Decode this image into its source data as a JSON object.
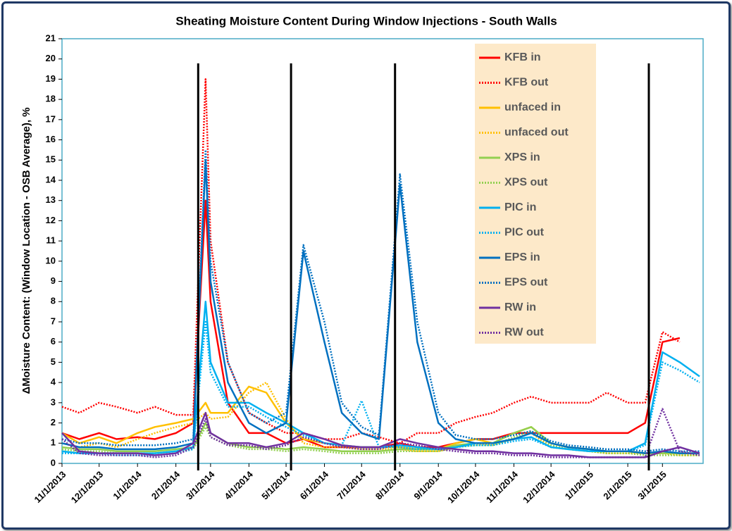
{
  "chart_data": {
    "type": "line",
    "title": "Sheating Moisture Content During Window Injections - South Walls",
    "y_label": "ΔMoisture Content: (Window Location - OSB Average), %",
    "x": [
      "11/1/2013",
      "11/15/2013",
      "12/1/2013",
      "12/15/2013",
      "1/1/2014",
      "1/15/2014",
      "2/1/2014",
      "2/15/2014",
      "2/25/2014",
      "3/1/2014",
      "3/15/2014",
      "4/1/2014",
      "4/15/2014",
      "5/1/2014",
      "5/15/2014",
      "6/1/2014",
      "6/15/2014",
      "7/1/2014",
      "7/15/2014",
      "8/1/2014",
      "8/15/2014",
      "9/1/2014",
      "9/15/2014",
      "10/1/2014",
      "10/15/2014",
      "11/1/2014",
      "11/15/2014",
      "12/1/2014",
      "12/15/2014",
      "1/1/2015",
      "1/15/2015",
      "2/1/2015",
      "2/15/2015",
      "3/1/2015",
      "3/15/2015",
      "3/31/2015"
    ],
    "xlim": [
      "11/1/2013",
      "3/31/2015"
    ],
    "xticks": [
      "11/1/2013",
      "12/1/2013",
      "1/1/2014",
      "2/1/2014",
      "3/1/2014",
      "4/1/2014",
      "5/1/2014",
      "6/1/2014",
      "7/1/2014",
      "8/1/2014",
      "9/1/2014",
      "10/1/2014",
      "11/1/2014",
      "12/1/2014",
      "1/1/2015",
      "2/1/2015",
      "3/1/2015"
    ],
    "ylim": [
      0,
      21
    ],
    "yticks": [
      0,
      1,
      2,
      3,
      4,
      5,
      6,
      7,
      8,
      9,
      10,
      11,
      12,
      13,
      14,
      15,
      16,
      17,
      18,
      19,
      20,
      21
    ],
    "grid": false,
    "legend": "upper right",
    "injection_dates": [
      "2/19/2014",
      "5/5/2014",
      "7/28/2014",
      "2/18/2015"
    ],
    "series": [
      {
        "name": "KFB in",
        "color": "#ff0000",
        "style": "solid",
        "values": [
          1.5,
          1.2,
          1.5,
          1.2,
          1.3,
          1.2,
          1.5,
          2,
          13,
          8,
          3,
          1.5,
          1.5,
          1,
          1.2,
          0.8,
          0.8,
          0.8,
          0.8,
          1,
          0.8,
          0.8,
          1,
          1.2,
          1.2,
          1.5,
          1.5,
          1.5,
          1.5,
          1.5,
          1.5,
          1.5,
          2,
          6,
          6.2,
          null
        ]
      },
      {
        "name": "KFB out",
        "color": "#ff0000",
        "style": "dotted",
        "values": [
          2.8,
          2.5,
          3,
          2.8,
          2.5,
          2.8,
          2.4,
          2.4,
          19,
          11,
          5,
          2.5,
          2,
          1.5,
          1.5,
          1.2,
          1.2,
          1.5,
          1.3,
          1,
          1.5,
          1.5,
          2,
          2.3,
          2.5,
          3,
          3.3,
          3,
          3,
          3,
          3.5,
          3,
          3,
          6.5,
          6,
          null
        ]
      },
      {
        "name": "unfaced in",
        "color": "#ffc000",
        "style": "solid",
        "values": [
          1.5,
          1,
          1.3,
          1,
          1.5,
          1.8,
          2,
          2.2,
          3,
          2.5,
          2.5,
          3.8,
          3.5,
          2,
          1.2,
          1,
          0.9,
          0.8,
          0.8,
          0.8,
          0.7,
          0.7,
          1,
          1.2,
          1,
          1.5,
          1.8,
          1,
          0.8,
          0.7,
          0.6,
          0.6,
          0.5,
          0.5,
          0.5,
          0.5
        ]
      },
      {
        "name": "unfaced out",
        "color": "#ffc000",
        "style": "dotted",
        "values": [
          1,
          0.8,
          1,
          0.8,
          1.2,
          1.5,
          1.8,
          2,
          2.5,
          2.2,
          2.3,
          3.5,
          4,
          2.2,
          1,
          0.8,
          0.8,
          0.7,
          0.7,
          0.7,
          0.6,
          0.6,
          0.8,
          1,
          0.9,
          1.2,
          1.5,
          0.8,
          0.7,
          0.6,
          0.5,
          0.5,
          0.5,
          0.5,
          0.4,
          0.4
        ]
      },
      {
        "name": "XPS in",
        "color": "#92d050",
        "style": "solid",
        "values": [
          0.8,
          0.7,
          0.7,
          0.6,
          0.6,
          0.6,
          0.7,
          0.8,
          2,
          1.5,
          1,
          0.8,
          0.8,
          0.7,
          0.8,
          0.7,
          0.6,
          0.6,
          0.6,
          0.7,
          0.7,
          0.7,
          0.9,
          1,
          1,
          1.5,
          1.8,
          1,
          0.8,
          0.7,
          0.6,
          0.6,
          0.5,
          0.5,
          0.5,
          0.5
        ]
      },
      {
        "name": "XPS out",
        "color": "#92d050",
        "style": "dotted",
        "values": [
          0.7,
          0.6,
          0.6,
          0.5,
          0.5,
          0.5,
          0.6,
          0.7,
          1.8,
          1.3,
          0.9,
          0.7,
          0.7,
          0.6,
          0.7,
          0.6,
          0.5,
          0.5,
          0.5,
          0.6,
          0.6,
          0.6,
          0.8,
          0.9,
          0.9,
          1.3,
          1.6,
          0.9,
          0.7,
          0.6,
          0.5,
          0.5,
          0.4,
          0.4,
          0.4,
          0.4
        ]
      },
      {
        "name": "PIC in",
        "color": "#00b0f0",
        "style": "solid",
        "values": [
          0.6,
          0.5,
          0.5,
          0.5,
          0.5,
          0.5,
          0.6,
          0.8,
          8,
          5,
          3,
          3,
          2.5,
          2,
          1.5,
          1,
          0.9,
          0.8,
          0.8,
          0.9,
          0.8,
          0.7,
          0.8,
          1,
          1,
          1.2,
          1.3,
          0.8,
          0.7,
          0.6,
          0.6,
          0.6,
          1,
          5.5,
          5,
          4.3
        ]
      },
      {
        "name": "PIC out",
        "color": "#00b0f0",
        "style": "dotted",
        "values": [
          0.5,
          0.5,
          0.5,
          0.4,
          0.4,
          0.4,
          0.5,
          0.7,
          7,
          4.5,
          2.8,
          2.8,
          2.3,
          1.8,
          1.4,
          1,
          0.9,
          3.1,
          0.8,
          0.8,
          0.7,
          0.7,
          0.8,
          0.9,
          0.9,
          1.1,
          1.2,
          0.8,
          0.7,
          0.6,
          0.6,
          0.6,
          0.9,
          5,
          4.6,
          4
        ]
      },
      {
        "name": "EPS in",
        "color": "#0070c0",
        "style": "solid",
        "values": [
          1,
          0.8,
          0.8,
          0.7,
          0.7,
          0.7,
          0.8,
          1,
          15,
          9,
          4,
          2,
          1.5,
          2,
          10.5,
          6,
          2.5,
          1.5,
          1.2,
          13.8,
          6,
          2,
          1.2,
          1,
          1,
          1.2,
          1.5,
          1,
          0.8,
          0.7,
          0.6,
          0.6,
          0.5,
          0.6,
          0.5,
          0.5
        ]
      },
      {
        "name": "EPS out",
        "color": "#0070c0",
        "style": "dotted",
        "values": [
          1.2,
          1,
          1,
          0.9,
          0.9,
          0.9,
          1,
          1.2,
          15.5,
          10,
          5,
          2.5,
          2,
          2.5,
          10.8,
          7,
          3,
          1.8,
          1.4,
          14.3,
          7,
          2.5,
          1.4,
          1.2,
          1.2,
          1.4,
          1.6,
          1.1,
          0.9,
          0.8,
          0.7,
          0.7,
          0.6,
          0.7,
          0.6,
          0.6
        ]
      },
      {
        "name": "RW in",
        "color": "#7030a0",
        "style": "solid",
        "values": [
          1.5,
          0.6,
          0.5,
          0.5,
          0.5,
          0.4,
          0.5,
          1,
          2.5,
          1.5,
          1,
          1,
          0.8,
          1,
          1.5,
          1.2,
          0.9,
          0.8,
          0.8,
          1.2,
          1,
          0.8,
          0.7,
          0.6,
          0.6,
          0.5,
          0.5,
          0.4,
          0.4,
          0.3,
          0.3,
          0.3,
          0.3,
          0.6,
          0.8,
          0.5
        ]
      },
      {
        "name": "RW out",
        "color": "#7030a0",
        "style": "dotted",
        "values": [
          1.2,
          0.5,
          0.4,
          0.4,
          0.4,
          0.3,
          0.4,
          0.8,
          2.2,
          1.3,
          0.9,
          0.9,
          0.7,
          0.9,
          1.3,
          1,
          0.8,
          0.7,
          0.7,
          1,
          0.9,
          0.7,
          0.6,
          0.5,
          0.5,
          0.4,
          0.4,
          0.3,
          0.3,
          0.3,
          0.3,
          0.3,
          0.3,
          2.7,
          0.6,
          0.4
        ]
      }
    ]
  }
}
